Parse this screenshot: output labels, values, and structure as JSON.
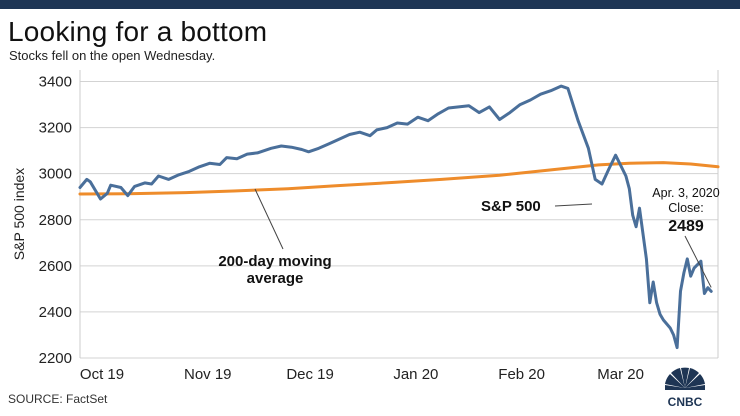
{
  "header": {
    "title": "Looking for a bottom",
    "subtitle": "Stocks fell on the open Wednesday."
  },
  "footer": {
    "source": "SOURCE: FactSet"
  },
  "brand": {
    "logo_text": "CNBC",
    "bar_color": "#1e3554"
  },
  "colors": {
    "sp500": "#4a6f9a",
    "moving_average": "#ee8c2b",
    "grid": "#d3d3d3"
  },
  "chart_data": {
    "type": "line",
    "title": "Looking for a bottom",
    "subtitle": "Stocks fell on the open Wednesday.",
    "xlabel": "",
    "ylabel": "S&P 500 index",
    "ylim": [
      2200,
      3450
    ],
    "xlim": [
      "2019-10-01",
      "2020-04-05"
    ],
    "yticks": [
      2200,
      2400,
      2600,
      2800,
      3000,
      3200,
      3400
    ],
    "xticks": [
      {
        "label": "Oct 19",
        "date": "2019-10-01"
      },
      {
        "label": "Nov 19",
        "date": "2019-11-01"
      },
      {
        "label": "Dec 19",
        "date": "2019-12-01"
      },
      {
        "label": "Jan 20",
        "date": "2020-01-01"
      },
      {
        "label": "Feb 20",
        "date": "2020-02-01"
      },
      {
        "label": "Mar 20",
        "date": "2020-03-01"
      }
    ],
    "grid": "horizontal",
    "series": [
      {
        "name": "S&P 500",
        "color": "#4a6f9a",
        "points": [
          [
            "2019-10-01",
            2940
          ],
          [
            "2019-10-03",
            2975
          ],
          [
            "2019-10-04",
            2965
          ],
          [
            "2019-10-07",
            2890
          ],
          [
            "2019-10-09",
            2915
          ],
          [
            "2019-10-10",
            2950
          ],
          [
            "2019-10-13",
            2940
          ],
          [
            "2019-10-15",
            2905
          ],
          [
            "2019-10-17",
            2945
          ],
          [
            "2019-10-20",
            2960
          ],
          [
            "2019-10-22",
            2955
          ],
          [
            "2019-10-24",
            2990
          ],
          [
            "2019-10-27",
            2975
          ],
          [
            "2019-10-30",
            2995
          ],
          [
            "2019-11-02",
            3010
          ],
          [
            "2019-11-05",
            3030
          ],
          [
            "2019-11-08",
            3045
          ],
          [
            "2019-11-11",
            3040
          ],
          [
            "2019-11-13",
            3070
          ],
          [
            "2019-11-16",
            3065
          ],
          [
            "2019-11-19",
            3085
          ],
          [
            "2019-11-22",
            3090
          ],
          [
            "2019-11-26",
            3110
          ],
          [
            "2019-11-29",
            3120
          ],
          [
            "2019-12-02",
            3115
          ],
          [
            "2019-12-05",
            3105
          ],
          [
            "2019-12-07",
            3095
          ],
          [
            "2019-12-10",
            3110
          ],
          [
            "2019-12-13",
            3130
          ],
          [
            "2019-12-16",
            3150
          ],
          [
            "2019-12-19",
            3170
          ],
          [
            "2019-12-22",
            3180
          ],
          [
            "2019-12-25",
            3165
          ],
          [
            "2019-12-27",
            3190
          ],
          [
            "2019-12-30",
            3200
          ],
          [
            "2020-01-02",
            3220
          ],
          [
            "2020-01-05",
            3215
          ],
          [
            "2020-01-08",
            3245
          ],
          [
            "2020-01-11",
            3230
          ],
          [
            "2020-01-14",
            3260
          ],
          [
            "2020-01-17",
            3285
          ],
          [
            "2020-01-20",
            3290
          ],
          [
            "2020-01-23",
            3295
          ],
          [
            "2020-01-26",
            3265
          ],
          [
            "2020-01-29",
            3290
          ],
          [
            "2020-02-01",
            3235
          ],
          [
            "2020-02-04",
            3265
          ],
          [
            "2020-02-07",
            3300
          ],
          [
            "2020-02-10",
            3320
          ],
          [
            "2020-02-13",
            3345
          ],
          [
            "2020-02-16",
            3360
          ],
          [
            "2020-02-19",
            3380
          ],
          [
            "2020-02-21",
            3370
          ],
          [
            "2020-02-24",
            3230
          ],
          [
            "2020-02-27",
            3110
          ],
          [
            "2020-02-29",
            2975
          ],
          [
            "2020-03-02",
            2955
          ],
          [
            "2020-03-04",
            3020
          ],
          [
            "2020-03-06",
            3080
          ],
          [
            "2020-03-07",
            3050
          ],
          [
            "2020-03-09",
            2990
          ],
          [
            "2020-03-10",
            2935
          ],
          [
            "2020-03-11",
            2820
          ],
          [
            "2020-03-12",
            2770
          ],
          [
            "2020-03-13",
            2850
          ],
          [
            "2020-03-15",
            2630
          ],
          [
            "2020-03-16",
            2440
          ],
          [
            "2020-03-17",
            2530
          ],
          [
            "2020-03-18",
            2440
          ],
          [
            "2020-03-19",
            2390
          ],
          [
            "2020-03-20",
            2365
          ],
          [
            "2020-03-22",
            2330
          ],
          [
            "2020-03-23",
            2300
          ],
          [
            "2020-03-24",
            2245
          ],
          [
            "2020-03-25",
            2490
          ],
          [
            "2020-03-26",
            2570
          ],
          [
            "2020-03-27",
            2630
          ],
          [
            "2020-03-28",
            2555
          ],
          [
            "2020-03-29",
            2590
          ],
          [
            "2020-03-31",
            2620
          ],
          [
            "2020-04-01",
            2480
          ],
          [
            "2020-04-02",
            2505
          ],
          [
            "2020-04-03",
            2489
          ]
        ]
      },
      {
        "name": "200-day moving average",
        "color": "#ee8c2b",
        "points": [
          [
            "2019-10-01",
            2912
          ],
          [
            "2019-10-15",
            2913
          ],
          [
            "2019-11-01",
            2918
          ],
          [
            "2019-11-15",
            2925
          ],
          [
            "2019-12-01",
            2935
          ],
          [
            "2019-12-15",
            2948
          ],
          [
            "2020-01-01",
            2962
          ],
          [
            "2020-01-15",
            2975
          ],
          [
            "2020-02-01",
            2993
          ],
          [
            "2020-02-15",
            3015
          ],
          [
            "2020-03-01",
            3038
          ],
          [
            "2020-03-10",
            3045
          ],
          [
            "2020-03-20",
            3048
          ],
          [
            "2020-03-28",
            3042
          ],
          [
            "2020-04-05",
            3030
          ]
        ]
      }
    ],
    "annotations": [
      {
        "name": "sp500-label",
        "text": "S&P 500"
      },
      {
        "name": "ma-label",
        "lines": [
          "200-day moving",
          "average"
        ]
      },
      {
        "name": "close-label",
        "lines": [
          "Apr. 3, 2020",
          "Close:"
        ],
        "value": "2489",
        "date": "2020-04-03",
        "y": 2489
      }
    ]
  }
}
